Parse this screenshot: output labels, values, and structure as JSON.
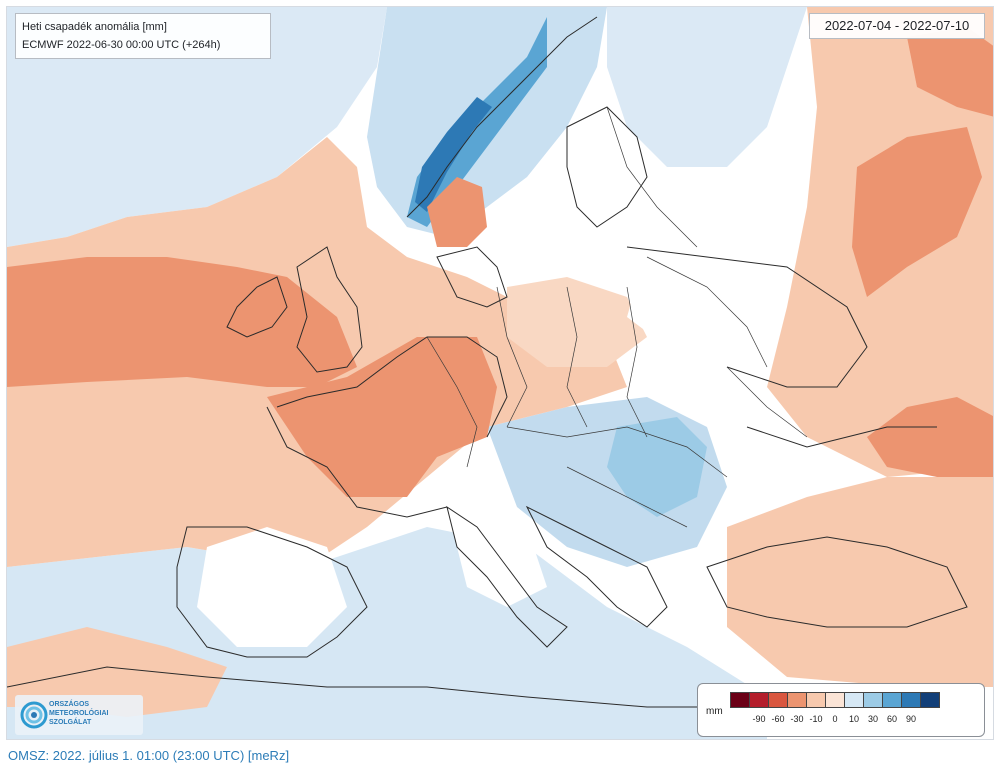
{
  "map": {
    "title": "Heti csapadék anomália [mm]",
    "subtitle": "ECMWF 2022-06-30 00:00 UTC (+264h)",
    "date_range": "2022-07-04 - 2022-07-10",
    "legend": {
      "unit": "mm",
      "ticks": [
        "-90",
        "-60",
        "-30",
        "-10",
        "0",
        "10",
        "30",
        "60",
        "90"
      ],
      "colors": [
        "#6b0016",
        "#b41d2b",
        "#d9563f",
        "#ec9470",
        "#f7c9ae",
        "#fbe4d6",
        "#d6e8f5",
        "#9ccbe6",
        "#5aa5d3",
        "#2d79b5",
        "#123f78"
      ]
    },
    "logo": {
      "line1": "ORSZÁGOS",
      "line2": "METEOROLÓGIAI",
      "line3": "SZOLGÁLAT"
    }
  },
  "footer": {
    "text": "OMSZ: 2022. július 1. 01:00 (23:00  UTC)  [meRz]"
  }
}
